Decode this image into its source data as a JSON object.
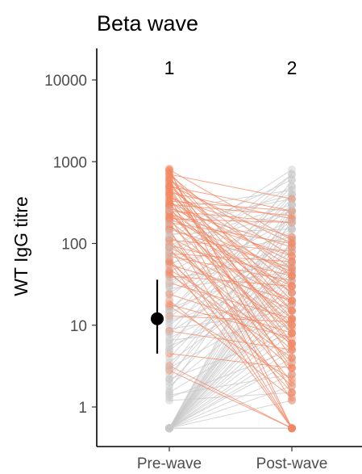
{
  "chart_data": {
    "type": "scatter",
    "title": "Beta wave",
    "xlabel": "",
    "ylabel": "WT IgG titre",
    "y_scale": "log10",
    "ylim": [
      0.4,
      25000
    ],
    "categories": [
      "Pre-wave",
      "Post-wave"
    ],
    "y_ticks": [
      1,
      10,
      100,
      1000,
      10000
    ],
    "y_tick_labels": [
      "1",
      "10",
      "100",
      "1000",
      "10000"
    ],
    "annotations": [
      "1",
      "2"
    ],
    "grid": false,
    "legend": "none",
    "colors": {
      "increase": "#f4845f",
      "decrease": "#c8c8c8",
      "summary_point": "#000000"
    },
    "summary": {
      "category": "Pre-wave",
      "median": 12,
      "lower": 4.5,
      "upper": 36
    },
    "pairs": [
      [
        0.55,
        2.5
      ],
      [
        0.55,
        8
      ],
      [
        0.55,
        20
      ],
      [
        0.55,
        40
      ],
      [
        0.55,
        90
      ],
      [
        0.55,
        200
      ],
      [
        0.55,
        12
      ],
      [
        0.55,
        5
      ],
      [
        0.55,
        30
      ],
      [
        0.55,
        60
      ],
      [
        0.55,
        150
      ],
      [
        0.55,
        1.8
      ],
      [
        0.55,
        3.5
      ],
      [
        0.55,
        25
      ],
      [
        0.55,
        70
      ],
      [
        0.55,
        300
      ],
      [
        0.55,
        15
      ],
      [
        0.55,
        45
      ],
      [
        0.55,
        0.55
      ],
      [
        0.55,
        6
      ],
      [
        0.55,
        110
      ],
      [
        0.55,
        10
      ],
      [
        0.55,
        35
      ],
      [
        0.55,
        80
      ],
      [
        0.55,
        18
      ],
      [
        0.55,
        4
      ],
      [
        0.55,
        55
      ],
      [
        0.55,
        1.2
      ],
      [
        0.55,
        250
      ],
      [
        0.55,
        0.55
      ],
      [
        1.3,
        5
      ],
      [
        1.5,
        12
      ],
      [
        1.8,
        30
      ],
      [
        2.0,
        60
      ],
      [
        2.2,
        8
      ],
      [
        2.5,
        100
      ],
      [
        3.0,
        20
      ],
      [
        3.5,
        45
      ],
      [
        4.0,
        150
      ],
      [
        1.2,
        1.5
      ],
      [
        1.4,
        2.5
      ],
      [
        2.8,
        0.55
      ],
      [
        4.5,
        3
      ],
      [
        3.2,
        0.55
      ],
      [
        5,
        50
      ],
      [
        5.5,
        25
      ],
      [
        6,
        200
      ],
      [
        7,
        35
      ],
      [
        8,
        80
      ],
      [
        9,
        15
      ],
      [
        10,
        120
      ],
      [
        11,
        40
      ],
      [
        12,
        18
      ],
      [
        14,
        90
      ],
      [
        15,
        300
      ],
      [
        16,
        60
      ],
      [
        18,
        7
      ],
      [
        6.5,
        10
      ],
      [
        8.5,
        5
      ],
      [
        13,
        11
      ],
      [
        17,
        2.2
      ],
      [
        20,
        1.3
      ],
      [
        22,
        400
      ],
      [
        25,
        150
      ],
      [
        28,
        45
      ],
      [
        30,
        200
      ],
      [
        33,
        12
      ],
      [
        35,
        90
      ],
      [
        40,
        30
      ],
      [
        45,
        250
      ],
      [
        48,
        6
      ],
      [
        52,
        700
      ],
      [
        24,
        8
      ],
      [
        38,
        55
      ],
      [
        42,
        4
      ],
      [
        55,
        20
      ],
      [
        58,
        120
      ],
      [
        60,
        3
      ],
      [
        65,
        1.5
      ],
      [
        70,
        35
      ],
      [
        75,
        60
      ],
      [
        80,
        10
      ],
      [
        85,
        250
      ],
      [
        90,
        15
      ],
      [
        95,
        40
      ],
      [
        100,
        5
      ],
      [
        110,
        80
      ],
      [
        120,
        20
      ],
      [
        130,
        150
      ],
      [
        140,
        2
      ],
      [
        150,
        50
      ],
      [
        160,
        30
      ],
      [
        170,
        8
      ],
      [
        180,
        100
      ],
      [
        190,
        12
      ],
      [
        200,
        45
      ],
      [
        210,
        1.2
      ],
      [
        220,
        25
      ],
      [
        230,
        70
      ],
      [
        240,
        6
      ],
      [
        250,
        180
      ],
      [
        260,
        18
      ],
      [
        270,
        90
      ],
      [
        280,
        3
      ],
      [
        290,
        40
      ],
      [
        300,
        10
      ],
      [
        320,
        60
      ],
      [
        340,
        15
      ],
      [
        360,
        120
      ],
      [
        380,
        0.55
      ],
      [
        400,
        25
      ],
      [
        420,
        200
      ],
      [
        440,
        8
      ],
      [
        460,
        50
      ],
      [
        480,
        4
      ],
      [
        500,
        30
      ],
      [
        520,
        100
      ],
      [
        550,
        12
      ],
      [
        580,
        2.5
      ],
      [
        600,
        70
      ],
      [
        620,
        20
      ],
      [
        650,
        6
      ],
      [
        700,
        40
      ],
      [
        750,
        15
      ],
      [
        780,
        1.5
      ],
      [
        800,
        110
      ],
      [
        820,
        0.55
      ],
      [
        60,
        0.55
      ],
      [
        90,
        0.55
      ],
      [
        150,
        0.55
      ],
      [
        45,
        1.8
      ],
      [
        110,
        3.5
      ],
      [
        250,
        5.5
      ],
      [
        400,
        9
      ],
      [
        30,
        700
      ],
      [
        70,
        500
      ],
      [
        120,
        600
      ],
      [
        85,
        800
      ],
      [
        180,
        350
      ],
      [
        260,
        450
      ],
      [
        330,
        250
      ],
      [
        15,
        500
      ],
      [
        8,
        400
      ],
      [
        12,
        350
      ],
      [
        5,
        600
      ],
      [
        95,
        300
      ],
      [
        140,
        400
      ],
      [
        200,
        180
      ],
      [
        300,
        220
      ],
      [
        500,
        250
      ],
      [
        700,
        350
      ],
      [
        3,
        180
      ],
      [
        2.2,
        300
      ],
      [
        1.6,
        250
      ]
    ]
  }
}
